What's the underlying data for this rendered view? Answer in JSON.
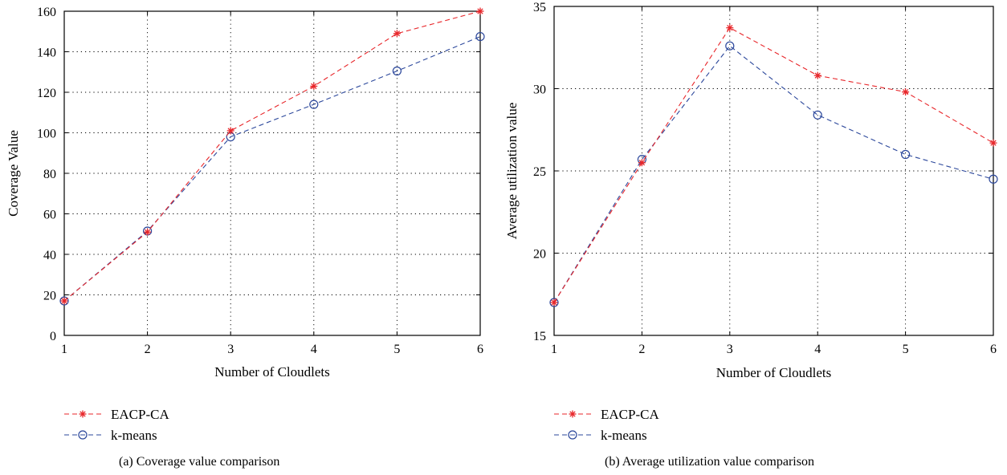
{
  "chart_data": [
    {
      "type": "line",
      "title": "",
      "caption": "(a)  Coverage value comparison",
      "xlabel": "Number of Cloudlets",
      "ylabel": "Coverage Value",
      "x": [
        1,
        2,
        3,
        4,
        5,
        6
      ],
      "xlim": [
        1,
        6
      ],
      "ylim": [
        0,
        160
      ],
      "xticks": [
        1,
        2,
        3,
        4,
        5,
        6
      ],
      "yticks": [
        0,
        20,
        40,
        60,
        80,
        100,
        120,
        140,
        160
      ],
      "grid": true,
      "legend_position": "below",
      "series": [
        {
          "name": "EACP-CA",
          "marker": "asterisk",
          "color": "#e8262a",
          "values": [
            17,
            51,
            101,
            123,
            149,
            160
          ]
        },
        {
          "name": "k-means",
          "marker": "circle",
          "color": "#2b479b",
          "values": [
            17,
            51.5,
            98,
            114,
            130.5,
            147.5
          ]
        }
      ]
    },
    {
      "type": "line",
      "title": "",
      "caption": "(b)  Average utilization value comparison",
      "xlabel": "Number of Cloudlets",
      "ylabel": "Average utilization value",
      "x": [
        1,
        2,
        3,
        4,
        5,
        6
      ],
      "xlim": [
        1,
        6
      ],
      "ylim": [
        15,
        35
      ],
      "xticks": [
        1,
        2,
        3,
        4,
        5,
        6
      ],
      "yticks": [
        15,
        20,
        25,
        30,
        35
      ],
      "grid": true,
      "legend_position": "below",
      "series": [
        {
          "name": "EACP-CA",
          "marker": "asterisk",
          "color": "#e8262a",
          "values": [
            17,
            25.5,
            33.7,
            30.8,
            29.8,
            26.7
          ]
        },
        {
          "name": "k-means",
          "marker": "circle",
          "color": "#2b479b",
          "values": [
            17,
            25.7,
            32.6,
            28.4,
            26,
            24.5
          ]
        }
      ]
    }
  ]
}
